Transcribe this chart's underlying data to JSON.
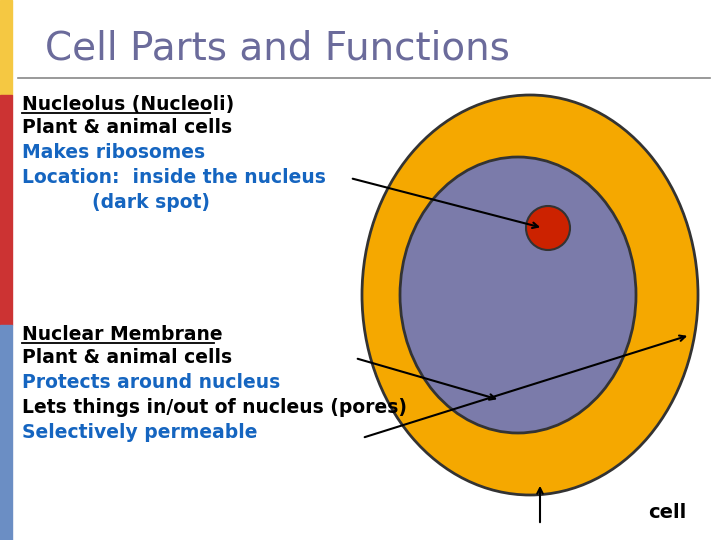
{
  "title": "Cell Parts and Functions",
  "title_color": "#6B6B9B",
  "title_fontsize": 28,
  "bg_color": "#FFFFFF",
  "left_bar_colors": [
    "#F5C842",
    "#CC3333",
    "#6B8EC4"
  ],
  "cell_outer_color": "#F5A800",
  "cell_outer_edge": "#333333",
  "nucleus_color": "#7B7BAA",
  "nucleus_edge": "#333333",
  "nucleolus_color": "#CC2200",
  "text_black": "#000000",
  "text_blue": "#1565C0",
  "line1_text": "Nucleolus (Nucleoli)",
  "line2_text": "Plant & animal cells",
  "line3_text": "Makes ribosomes",
  "line4_text": "Location:  inside the nucleus",
  "line5_text": "(dark spot)",
  "line6_text": "Nuclear Membrane",
  "line7_text": "Plant & animal cells",
  "line8_text": "Protects around nucleus",
  "line9_text": "Lets things in/out of nucleus (pores)",
  "line10_text": "Selectively permeable",
  "cell_label": "cell",
  "separator_color": "#888888"
}
